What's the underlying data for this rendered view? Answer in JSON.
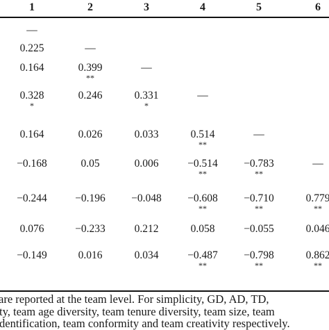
{
  "header": [
    "1",
    "2",
    "3",
    "4",
    "5",
    "6"
  ],
  "rows": [
    [
      "—"
    ],
    [
      "0.225",
      "—"
    ],
    [
      "0.164",
      "0.399\n**",
      "—"
    ],
    [
      "0.328\n*",
      "0.246",
      "0.331\n*",
      "—"
    ],
    [
      "0.164",
      "0.026",
      "0.033",
      "0.514\n**",
      "—"
    ],
    [
      "−0.168",
      "0.05",
      "0.006",
      "−0.514\n**",
      "−0.783\n**",
      "—"
    ],
    [
      "−0.244",
      "−0.196",
      "−0.048",
      "−0.608\n**",
      "−0.710\n**",
      "0.779\n**"
    ],
    [
      "0.076",
      "−0.233",
      "0.212",
      "0.058",
      "−0.055",
      "0.046"
    ],
    [
      "−0.149",
      "0.016",
      "0.034",
      "−0.487\n**",
      "−0.798\n**",
      "0.862\n**"
    ]
  ],
  "notes": [
    "are reported at the team level. For simplicity, GD, AD, TD,",
    "ty, team age diversity, team tenure diversity, team size, team",
    "dentification, team conformity and team creativity respectively."
  ]
}
